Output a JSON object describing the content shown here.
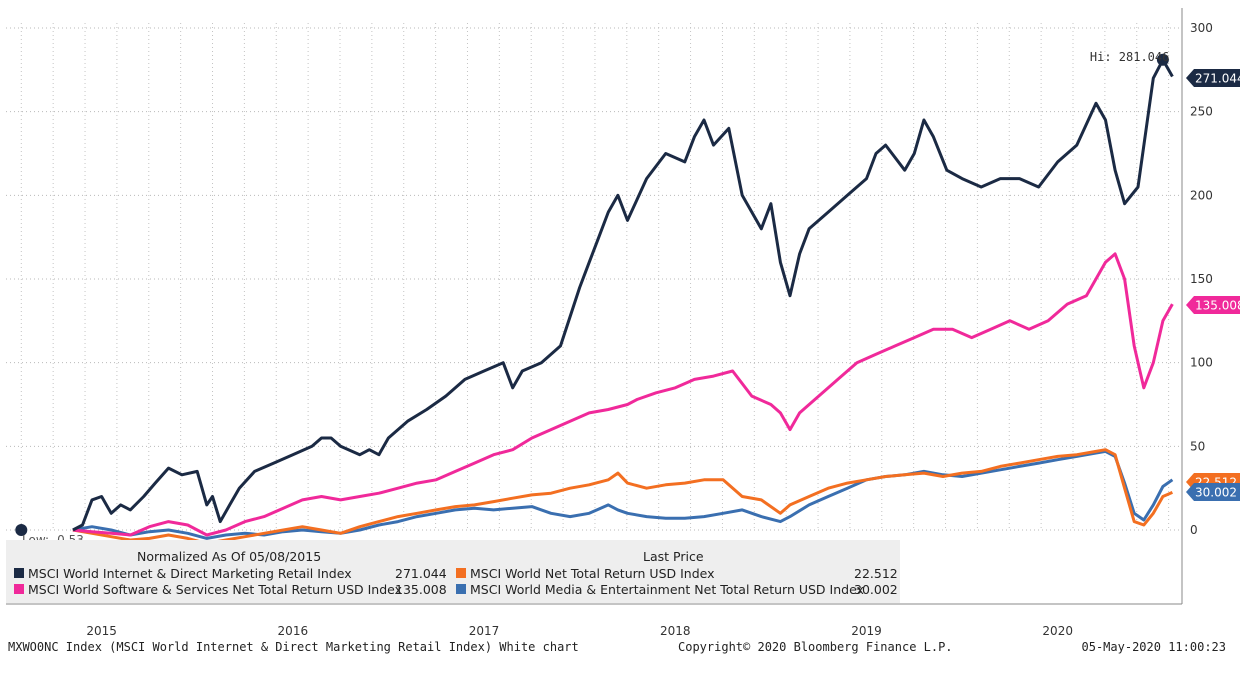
{
  "chart_data": {
    "type": "line",
    "x_labels": [
      "2015",
      "2016",
      "2017",
      "2018",
      "2019",
      "2020"
    ],
    "ylim": [
      0,
      300
    ],
    "y_ticks": [
      0,
      50,
      100,
      150,
      200,
      250,
      300
    ],
    "grid": true,
    "hi_label": "Hi: 281.046",
    "low_label": "Low: -0.53",
    "series": [
      {
        "name": "MSCI World Internet & Direct Marketing Retail Index",
        "color": "#1b2a44",
        "last": "271.044",
        "values": [
          [
            2015.35,
            0
          ],
          [
            2015.4,
            3
          ],
          [
            2015.45,
            18
          ],
          [
            2015.5,
            20
          ],
          [
            2015.55,
            10
          ],
          [
            2015.6,
            15
          ],
          [
            2015.65,
            12
          ],
          [
            2015.72,
            20
          ],
          [
            2015.78,
            28
          ],
          [
            2015.85,
            37
          ],
          [
            2015.92,
            33
          ],
          [
            2016.0,
            35
          ],
          [
            2016.05,
            15
          ],
          [
            2016.08,
            20
          ],
          [
            2016.12,
            5
          ],
          [
            2016.17,
            15
          ],
          [
            2016.22,
            25
          ],
          [
            2016.3,
            35
          ],
          [
            2016.4,
            40
          ],
          [
            2016.5,
            45
          ],
          [
            2016.6,
            50
          ],
          [
            2016.65,
            55
          ],
          [
            2016.7,
            55
          ],
          [
            2016.75,
            50
          ],
          [
            2016.85,
            45
          ],
          [
            2016.9,
            48
          ],
          [
            2016.95,
            45
          ],
          [
            2017.0,
            55
          ],
          [
            2017.1,
            65
          ],
          [
            2017.2,
            72
          ],
          [
            2017.3,
            80
          ],
          [
            2017.4,
            90
          ],
          [
            2017.5,
            95
          ],
          [
            2017.6,
            100
          ],
          [
            2017.65,
            85
          ],
          [
            2017.7,
            95
          ],
          [
            2017.8,
            100
          ],
          [
            2017.9,
            110
          ],
          [
            2018.0,
            145
          ],
          [
            2018.05,
            160
          ],
          [
            2018.1,
            175
          ],
          [
            2018.15,
            190
          ],
          [
            2018.2,
            200
          ],
          [
            2018.25,
            185
          ],
          [
            2018.35,
            210
          ],
          [
            2018.45,
            225
          ],
          [
            2018.55,
            220
          ],
          [
            2018.6,
            235
          ],
          [
            2018.65,
            245
          ],
          [
            2018.7,
            230
          ],
          [
            2018.78,
            240
          ],
          [
            2018.85,
            200
          ],
          [
            2018.95,
            180
          ],
          [
            2019.0,
            195
          ],
          [
            2019.05,
            160
          ],
          [
            2019.1,
            140
          ],
          [
            2019.15,
            165
          ],
          [
            2019.2,
            180
          ],
          [
            2019.3,
            190
          ],
          [
            2019.4,
            200
          ],
          [
            2019.5,
            210
          ],
          [
            2019.55,
            225
          ],
          [
            2019.6,
            230
          ],
          [
            2019.7,
            215
          ],
          [
            2019.75,
            225
          ],
          [
            2019.8,
            245
          ],
          [
            2019.85,
            235
          ],
          [
            2019.92,
            215
          ],
          [
            2020.0,
            210
          ],
          [
            2020.1,
            205
          ],
          [
            2020.2,
            210
          ],
          [
            2020.3,
            210
          ],
          [
            2020.4,
            205
          ],
          [
            2020.5,
            220
          ],
          [
            2020.6,
            230
          ],
          [
            2020.7,
            255
          ],
          [
            2020.75,
            245
          ],
          [
            2020.8,
            215
          ],
          [
            2020.85,
            195
          ],
          [
            2020.92,
            205
          ],
          [
            2021.0,
            270
          ],
          [
            2021.05,
            281
          ],
          [
            2021.1,
            271
          ]
        ]
      },
      {
        "name": "MSCI World Software & Services Net Total Return USD Index",
        "color": "#f0299a",
        "last": "135.008",
        "values": [
          [
            2015.35,
            0
          ],
          [
            2015.45,
            -1
          ],
          [
            2015.55,
            -2
          ],
          [
            2015.65,
            -3
          ],
          [
            2015.75,
            2
          ],
          [
            2015.85,
            5
          ],
          [
            2015.95,
            3
          ],
          [
            2016.05,
            -3
          ],
          [
            2016.15,
            0
          ],
          [
            2016.25,
            5
          ],
          [
            2016.35,
            8
          ],
          [
            2016.45,
            13
          ],
          [
            2016.55,
            18
          ],
          [
            2016.65,
            20
          ],
          [
            2016.75,
            18
          ],
          [
            2016.85,
            20
          ],
          [
            2016.95,
            22
          ],
          [
            2017.05,
            25
          ],
          [
            2017.15,
            28
          ],
          [
            2017.25,
            30
          ],
          [
            2017.35,
            35
          ],
          [
            2017.45,
            40
          ],
          [
            2017.55,
            45
          ],
          [
            2017.65,
            48
          ],
          [
            2017.75,
            55
          ],
          [
            2017.85,
            60
          ],
          [
            2017.95,
            65
          ],
          [
            2018.05,
            70
          ],
          [
            2018.15,
            72
          ],
          [
            2018.25,
            75
          ],
          [
            2018.3,
            78
          ],
          [
            2018.4,
            82
          ],
          [
            2018.5,
            85
          ],
          [
            2018.6,
            90
          ],
          [
            2018.7,
            92
          ],
          [
            2018.8,
            95
          ],
          [
            2018.9,
            80
          ],
          [
            2019.0,
            75
          ],
          [
            2019.05,
            70
          ],
          [
            2019.1,
            60
          ],
          [
            2019.15,
            70
          ],
          [
            2019.25,
            80
          ],
          [
            2019.35,
            90
          ],
          [
            2019.45,
            100
          ],
          [
            2019.55,
            105
          ],
          [
            2019.65,
            110
          ],
          [
            2019.75,
            115
          ],
          [
            2019.85,
            120
          ],
          [
            2019.95,
            120
          ],
          [
            2020.05,
            115
          ],
          [
            2020.15,
            120
          ],
          [
            2020.25,
            125
          ],
          [
            2020.35,
            120
          ],
          [
            2020.45,
            125
          ],
          [
            2020.55,
            135
          ],
          [
            2020.65,
            140
          ],
          [
            2020.75,
            160
          ],
          [
            2020.8,
            165
          ],
          [
            2020.85,
            150
          ],
          [
            2020.9,
            110
          ],
          [
            2020.95,
            85
          ],
          [
            2021.0,
            100
          ],
          [
            2021.05,
            125
          ],
          [
            2021.1,
            135
          ]
        ]
      },
      {
        "name": "MSCI World Net Total Return USD Index",
        "color": "#f36f21",
        "last": "22.512",
        "values": [
          [
            2015.35,
            0
          ],
          [
            2015.45,
            -2
          ],
          [
            2015.55,
            -4
          ],
          [
            2015.65,
            -6
          ],
          [
            2015.75,
            -5
          ],
          [
            2015.85,
            -3
          ],
          [
            2015.95,
            -5
          ],
          [
            2016.05,
            -8
          ],
          [
            2016.15,
            -6
          ],
          [
            2016.25,
            -4
          ],
          [
            2016.35,
            -2
          ],
          [
            2016.45,
            0
          ],
          [
            2016.55,
            2
          ],
          [
            2016.65,
            0
          ],
          [
            2016.75,
            -2
          ],
          [
            2016.85,
            2
          ],
          [
            2016.95,
            5
          ],
          [
            2017.05,
            8
          ],
          [
            2017.15,
            10
          ],
          [
            2017.25,
            12
          ],
          [
            2017.35,
            14
          ],
          [
            2017.45,
            15
          ],
          [
            2017.55,
            17
          ],
          [
            2017.65,
            19
          ],
          [
            2017.75,
            21
          ],
          [
            2017.85,
            22
          ],
          [
            2017.95,
            25
          ],
          [
            2018.05,
            27
          ],
          [
            2018.15,
            30
          ],
          [
            2018.2,
            34
          ],
          [
            2018.25,
            28
          ],
          [
            2018.35,
            25
          ],
          [
            2018.45,
            27
          ],
          [
            2018.55,
            28
          ],
          [
            2018.65,
            30
          ],
          [
            2018.75,
            30
          ],
          [
            2018.85,
            20
          ],
          [
            2018.95,
            18
          ],
          [
            2019.05,
            10
          ],
          [
            2019.1,
            15
          ],
          [
            2019.2,
            20
          ],
          [
            2019.3,
            25
          ],
          [
            2019.4,
            28
          ],
          [
            2019.5,
            30
          ],
          [
            2019.6,
            32
          ],
          [
            2019.7,
            33
          ],
          [
            2019.8,
            34
          ],
          [
            2019.9,
            32
          ],
          [
            2020.0,
            34
          ],
          [
            2020.1,
            35
          ],
          [
            2020.2,
            38
          ],
          [
            2020.3,
            40
          ],
          [
            2020.4,
            42
          ],
          [
            2020.5,
            44
          ],
          [
            2020.6,
            45
          ],
          [
            2020.7,
            47
          ],
          [
            2020.75,
            48
          ],
          [
            2020.8,
            45
          ],
          [
            2020.85,
            25
          ],
          [
            2020.9,
            5
          ],
          [
            2020.95,
            3
          ],
          [
            2021.0,
            10
          ],
          [
            2021.05,
            20
          ],
          [
            2021.1,
            22.5
          ]
        ]
      },
      {
        "name": "MSCI World Media & Entertainment Net Total Return USD Index",
        "color": "#3a6fb0",
        "last": "30.002",
        "values": [
          [
            2015.35,
            0
          ],
          [
            2015.45,
            2
          ],
          [
            2015.55,
            0
          ],
          [
            2015.65,
            -3
          ],
          [
            2015.75,
            -1
          ],
          [
            2015.85,
            0
          ],
          [
            2015.95,
            -2
          ],
          [
            2016.05,
            -5
          ],
          [
            2016.15,
            -3
          ],
          [
            2016.25,
            -2
          ],
          [
            2016.35,
            -3
          ],
          [
            2016.45,
            -1
          ],
          [
            2016.55,
            0
          ],
          [
            2016.65,
            -1
          ],
          [
            2016.75,
            -2
          ],
          [
            2016.85,
            0
          ],
          [
            2016.95,
            3
          ],
          [
            2017.05,
            5
          ],
          [
            2017.15,
            8
          ],
          [
            2017.25,
            10
          ],
          [
            2017.35,
            12
          ],
          [
            2017.45,
            13
          ],
          [
            2017.55,
            12
          ],
          [
            2017.65,
            13
          ],
          [
            2017.75,
            14
          ],
          [
            2017.85,
            10
          ],
          [
            2017.95,
            8
          ],
          [
            2018.05,
            10
          ],
          [
            2018.15,
            15
          ],
          [
            2018.2,
            12
          ],
          [
            2018.25,
            10
          ],
          [
            2018.35,
            8
          ],
          [
            2018.45,
            7
          ],
          [
            2018.55,
            7
          ],
          [
            2018.65,
            8
          ],
          [
            2018.75,
            10
          ],
          [
            2018.85,
            12
          ],
          [
            2018.95,
            8
          ],
          [
            2019.05,
            5
          ],
          [
            2019.1,
            8
          ],
          [
            2019.2,
            15
          ],
          [
            2019.3,
            20
          ],
          [
            2019.4,
            25
          ],
          [
            2019.5,
            30
          ],
          [
            2019.6,
            32
          ],
          [
            2019.7,
            33
          ],
          [
            2019.8,
            35
          ],
          [
            2019.9,
            33
          ],
          [
            2020.0,
            32
          ],
          [
            2020.1,
            34
          ],
          [
            2020.2,
            36
          ],
          [
            2020.3,
            38
          ],
          [
            2020.4,
            40
          ],
          [
            2020.5,
            42
          ],
          [
            2020.6,
            44
          ],
          [
            2020.7,
            46
          ],
          [
            2020.75,
            47
          ],
          [
            2020.8,
            44
          ],
          [
            2020.85,
            28
          ],
          [
            2020.9,
            10
          ],
          [
            2020.95,
            6
          ],
          [
            2021.0,
            15
          ],
          [
            2021.05,
            26
          ],
          [
            2021.1,
            30
          ]
        ]
      }
    ]
  },
  "legend": {
    "normalized": "Normalized As Of 05/08/2015",
    "last_price": "Last Price",
    "items": [
      {
        "name": "MSCI World Internet & Direct Marketing Retail Index",
        "value": "271.044",
        "color": "#1b2a44"
      },
      {
        "name": "MSCI World Software & Services Net Total Return USD Index",
        "value": "135.008",
        "color": "#f0299a"
      },
      {
        "name": "MSCI World Net Total Return USD Index",
        "value": "22.512",
        "color": "#f36f21"
      },
      {
        "name": "MSCI World Media & Entertainment Net Total Return USD Index",
        "value": "30.002",
        "color": "#3a6fb0"
      }
    ]
  },
  "footer": {
    "left": "MXWO0NC Index (MSCI World Internet & Direct Marketing Retail Index) White chart",
    "center": "Copyright© 2020 Bloomberg Finance L.P.",
    "right": "05-May-2020 11:00:23"
  }
}
